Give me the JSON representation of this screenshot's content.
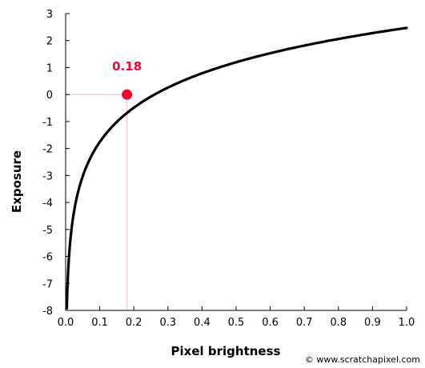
{
  "chart_data": {
    "type": "line",
    "title": "",
    "xlabel": "Pixel brightness",
    "ylabel": "Exposure",
    "xlim": [
      0.0,
      1.0
    ],
    "ylim": [
      -8,
      3
    ],
    "x_ticks": [
      "0.0",
      "0.1",
      "0.2",
      "0.3",
      "0.4",
      "0.5",
      "0.6",
      "0.7",
      "0.8",
      "0.9",
      "1.0"
    ],
    "y_ticks": [
      "3",
      "2",
      "1",
      "0",
      "-1",
      "-2",
      "-3",
      "-4",
      "-5",
      "-6",
      "-7",
      "-8"
    ],
    "grid": false,
    "series": [
      {
        "x": [
          0.0035,
          0.006,
          0.01,
          0.015,
          0.02,
          0.03,
          0.04,
          0.05,
          0.06,
          0.08,
          0.1,
          0.12,
          0.15,
          0.18,
          0.2,
          0.25,
          0.3,
          0.35,
          0.4,
          0.45,
          0.5,
          0.55,
          0.6,
          0.65,
          0.7,
          0.75,
          0.8,
          0.85,
          0.9,
          0.95,
          1.0
        ],
        "y": [
          -7.92,
          -7.07,
          -6.42,
          -5.79,
          -5.41,
          -4.84,
          -4.41,
          -4.06,
          -3.79,
          -3.37,
          -2.9,
          -2.63,
          -2.24,
          0.0,
          0.15,
          0.48,
          0.74,
          0.96,
          1.15,
          1.32,
          1.47,
          1.61,
          1.74,
          1.85,
          1.96,
          2.06,
          2.15,
          2.24,
          2.32,
          2.4,
          2.47
        ],
        "color": "#000000"
      }
    ],
    "annotation": {
      "label": "0.18",
      "x": 0.18,
      "y": 0,
      "color": "#ff0033",
      "guide_color": "#f4c4c9"
    }
  },
  "credit": "© www.scratchapixel.com"
}
